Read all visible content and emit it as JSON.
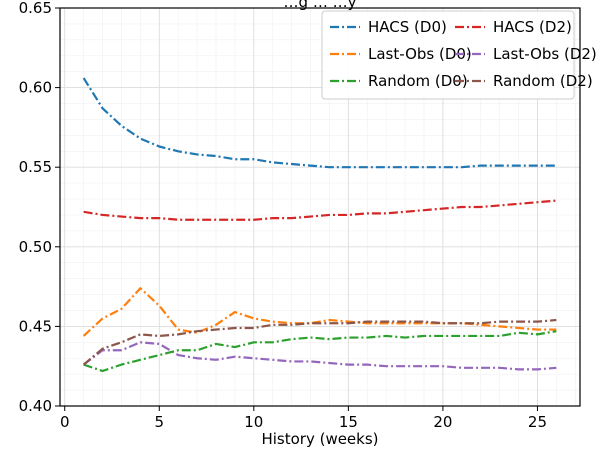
{
  "chart_data": {
    "type": "line",
    "title": "…g … …y",
    "xlabel": "History (weeks)",
    "ylabel": "",
    "xlim": [
      -0.25,
      27.25
    ],
    "ylim": [
      0.4,
      0.65
    ],
    "xticks": [
      0,
      5,
      10,
      15,
      20,
      25
    ],
    "yticks": [
      0.4,
      0.45,
      0.5,
      0.55,
      0.6,
      0.65
    ],
    "xtick_labels": [
      "0",
      "5",
      "10",
      "15",
      "20",
      "25"
    ],
    "ytick_labels": [
      "0.40",
      "0.45",
      "0.50",
      "0.55",
      "0.60",
      "0.65"
    ],
    "grid": true,
    "legend_position": "top-right",
    "x": [
      1,
      2,
      3,
      4,
      5,
      6,
      7,
      8,
      9,
      10,
      11,
      12,
      13,
      14,
      15,
      16,
      17,
      18,
      19,
      20,
      21,
      22,
      23,
      24,
      25,
      26
    ],
    "series": [
      {
        "name": "HACS (D0)",
        "color": "#1f77b4",
        "values": [
          0.606,
          0.587,
          0.576,
          0.568,
          0.563,
          0.56,
          0.558,
          0.557,
          0.555,
          0.555,
          0.553,
          0.552,
          0.551,
          0.55,
          0.55,
          0.55,
          0.55,
          0.55,
          0.55,
          0.55,
          0.55,
          0.551,
          0.551,
          0.551,
          0.551,
          0.551
        ]
      },
      {
        "name": "HACS (D2)",
        "color": "#d62728",
        "values": [
          0.522,
          0.52,
          0.519,
          0.518,
          0.518,
          0.517,
          0.517,
          0.517,
          0.517,
          0.517,
          0.518,
          0.518,
          0.519,
          0.52,
          0.52,
          0.521,
          0.521,
          0.522,
          0.523,
          0.524,
          0.525,
          0.525,
          0.526,
          0.527,
          0.528,
          0.529
        ]
      },
      {
        "name": "Last-Obs (D0)",
        "color": "#ff7f0e",
        "values": [
          0.444,
          0.455,
          0.461,
          0.474,
          0.463,
          0.448,
          0.446,
          0.451,
          0.459,
          0.455,
          0.453,
          0.452,
          0.452,
          0.454,
          0.453,
          0.452,
          0.452,
          0.452,
          0.452,
          0.452,
          0.452,
          0.451,
          0.45,
          0.449,
          0.448,
          0.448
        ]
      },
      {
        "name": "Last-Obs (D2)",
        "color": "#9467bd",
        "values": [
          0.426,
          0.435,
          0.435,
          0.44,
          0.439,
          0.432,
          0.43,
          0.429,
          0.431,
          0.43,
          0.429,
          0.428,
          0.428,
          0.427,
          0.426,
          0.426,
          0.425,
          0.425,
          0.425,
          0.425,
          0.424,
          0.424,
          0.424,
          0.423,
          0.423,
          0.424
        ]
      },
      {
        "name": "Random (D0)",
        "color": "#2ca02c",
        "values": [
          0.426,
          0.422,
          0.426,
          0.429,
          0.432,
          0.435,
          0.435,
          0.439,
          0.437,
          0.44,
          0.44,
          0.442,
          0.443,
          0.442,
          0.443,
          0.443,
          0.444,
          0.443,
          0.444,
          0.444,
          0.444,
          0.444,
          0.444,
          0.446,
          0.445,
          0.447
        ]
      },
      {
        "name": "Random (D2)",
        "color": "#8c564b",
        "values": [
          0.426,
          0.436,
          0.44,
          0.445,
          0.444,
          0.445,
          0.447,
          0.448,
          0.449,
          0.449,
          0.451,
          0.451,
          0.452,
          0.452,
          0.452,
          0.453,
          0.453,
          0.453,
          0.453,
          0.452,
          0.452,
          0.452,
          0.453,
          0.453,
          0.453,
          0.454
        ]
      }
    ]
  }
}
